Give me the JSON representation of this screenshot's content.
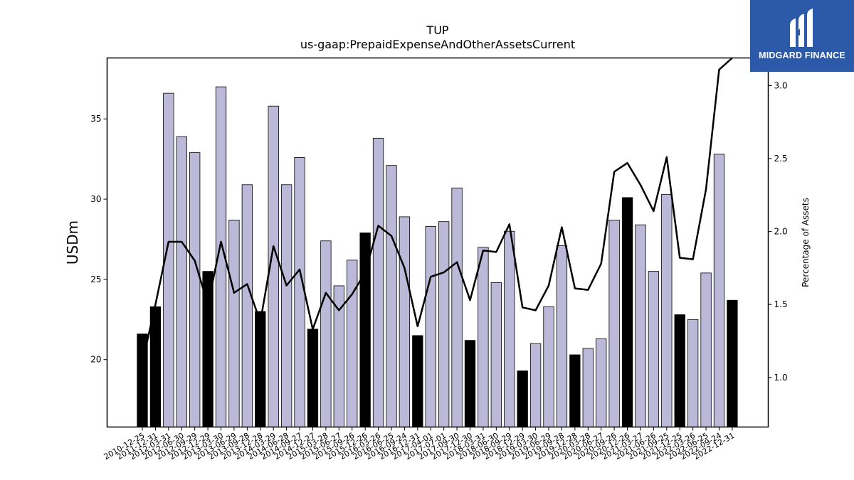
{
  "chart_data": {
    "type": "bar",
    "title": "TUP",
    "subtitle": "us-gaap:PrepaidExpenseAndOtherAssetsCurrent",
    "ylabel": "USDm",
    "y2label": "Percentage of Assets",
    "ylim": [
      15.8,
      38.8
    ],
    "y2lim": [
      0.66,
      3.19
    ],
    "yticks": [
      20,
      25,
      30,
      35
    ],
    "y2ticks": [
      1.0,
      1.5,
      2.0,
      2.5,
      3.0
    ],
    "ytick_labels": [
      "20",
      "25",
      "30",
      "35"
    ],
    "y2tick_labels": [
      "1.0",
      "1.5",
      "2.0",
      "2.5",
      "3.0"
    ],
    "categories": [
      "2010-12-25",
      "2011-12-31",
      "2012-03-31",
      "2012-06-30",
      "2012-09-29",
      "2012-12-29",
      "2013-03-30",
      "2013-06-29",
      "2013-09-28",
      "2013-12-28",
      "2014-03-29",
      "2014-06-28",
      "2014-09-27",
      "2014-12-27",
      "2015-03-28",
      "2015-06-27",
      "2015-09-26",
      "2015-12-26",
      "2016-03-26",
      "2016-06-25",
      "2016-09-24",
      "2016-12-31",
      "2017-04-01",
      "2017-07-01",
      "2017-09-30",
      "2017-12-30",
      "2018-03-31",
      "2018-06-30",
      "2018-09-29",
      "2018-12-29",
      "2019-03-30",
      "2019-06-29",
      "2019-09-28",
      "2019-12-28",
      "2020-03-28",
      "2020-06-27",
      "2020-09-26",
      "2020-12-26",
      "2021-03-27",
      "2021-06-26",
      "2021-09-25",
      "2021-12-25",
      "2022-03-26",
      "2022-06-25",
      "2022-09-24",
      "2022-12-31"
    ],
    "series": [
      {
        "values": [
          21.6,
          23.3,
          36.6,
          33.9,
          32.9,
          25.5,
          37.0,
          28.7,
          30.9,
          23.0,
          35.8,
          30.9,
          32.6,
          21.9,
          27.4,
          24.6,
          26.2,
          27.9,
          33.8,
          32.1,
          28.9,
          21.5,
          28.3,
          28.6,
          30.7,
          21.2,
          27.0,
          24.8,
          28.0,
          19.3,
          21.0,
          23.3,
          27.1,
          20.3,
          20.7,
          21.3,
          28.7,
          30.1,
          28.4,
          25.5,
          30.3,
          22.8,
          22.5,
          25.4,
          32.8,
          23.7
        ],
        "highlight": [
          true,
          true,
          false,
          false,
          false,
          true,
          false,
          false,
          false,
          true,
          false,
          false,
          false,
          true,
          false,
          false,
          false,
          true,
          false,
          false,
          false,
          true,
          false,
          false,
          false,
          true,
          false,
          false,
          false,
          true,
          false,
          false,
          false,
          true,
          false,
          false,
          false,
          true,
          false,
          false,
          false,
          true,
          false,
          false,
          false,
          true
        ],
        "color": "#bcb8d8",
        "highlight_color": "#000000"
      },
      {
        "type": "line",
        "axis": "right",
        "color": "#000000",
        "values": [
          1.1,
          1.5,
          1.93,
          1.93,
          1.8,
          1.5,
          1.93,
          1.58,
          1.64,
          1.38,
          1.9,
          1.63,
          1.74,
          1.33,
          1.58,
          1.46,
          1.57,
          1.72,
          2.04,
          1.97,
          1.75,
          1.35,
          1.69,
          1.72,
          1.79,
          1.53,
          1.87,
          1.86,
          2.05,
          1.48,
          1.46,
          1.63,
          2.03,
          1.61,
          1.6,
          1.78,
          2.41,
          2.47,
          2.32,
          2.14,
          2.51,
          1.82,
          1.81,
          2.29,
          3.11,
          3.19
        ]
      }
    ]
  },
  "logo": {
    "text": "MIDGARD FINANCE",
    "color": "#2c5aa8"
  }
}
